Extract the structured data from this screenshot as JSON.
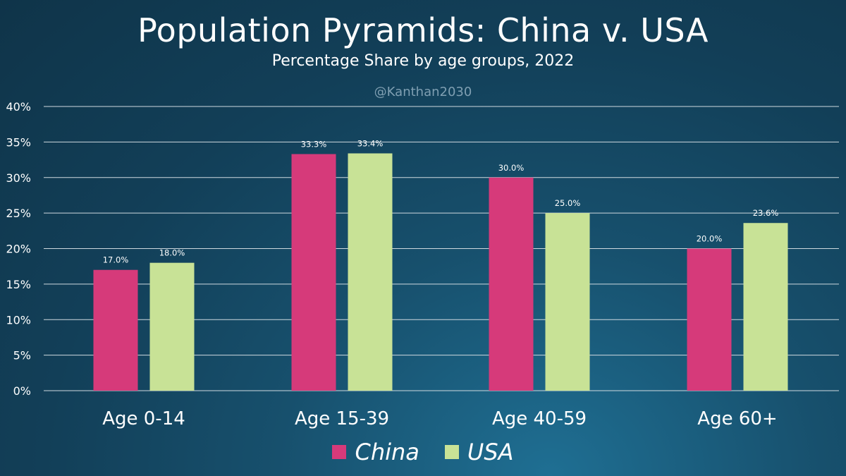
{
  "chart_data": {
    "type": "bar",
    "title": "Population Pyramids: China v. USA",
    "subtitle": "Percentage Share by age groups, 2022",
    "credit": "@Kanthan2030",
    "categories": [
      "Age 0-14",
      "Age 15-39",
      "Age 40-59",
      "Age 60+"
    ],
    "series": [
      {
        "name": "China",
        "color": "#d63a7a",
        "values": [
          17.0,
          33.3,
          30.0,
          20.0
        ],
        "labels": [
          "17.0%",
          "33.3%",
          "30.0%",
          "20.0%"
        ]
      },
      {
        "name": "USA",
        "color": "#c8e296",
        "values": [
          18.0,
          33.4,
          25.0,
          23.6
        ],
        "labels": [
          "18.0%",
          "33.4%",
          "25.0%",
          "23.6%"
        ]
      }
    ],
    "ylim": [
      0,
      40
    ],
    "yticks": [
      0,
      5,
      10,
      15,
      20,
      25,
      30,
      35,
      40
    ],
    "ytick_labels": [
      "0%",
      "5%",
      "10%",
      "15%",
      "20%",
      "25%",
      "30%",
      "35%",
      "40%"
    ],
    "grid": true,
    "legend_position": "bottom-center"
  }
}
